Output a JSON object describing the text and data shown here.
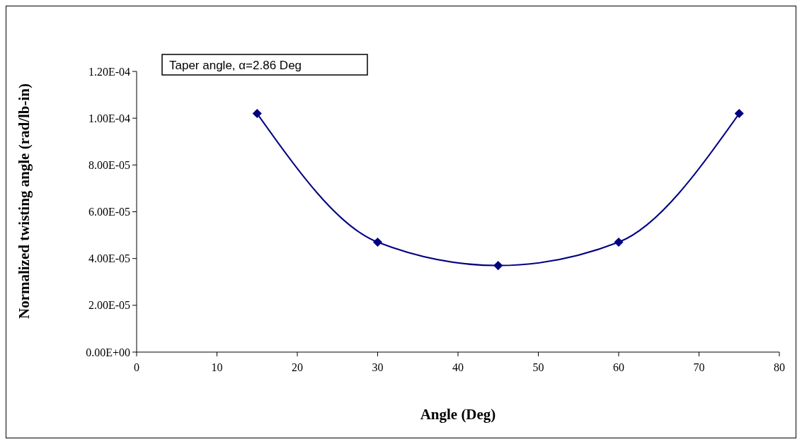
{
  "chart_data": {
    "type": "line",
    "xlabel": "Angle (Deg)",
    "ylabel": "Normalized twisting angle (rad/lb-in)",
    "annotations": [
      "Taper angle, α=2.86 Deg"
    ],
    "x": [
      15,
      30,
      45,
      60,
      75
    ],
    "series": [
      {
        "color": "#000080",
        "values": [
          0.000102,
          4.7e-05,
          3.7e-05,
          4.7e-05,
          0.000102
        ]
      }
    ],
    "xlim": [
      0,
      80
    ],
    "xticks": [
      0,
      10,
      20,
      30,
      40,
      50,
      60,
      70,
      80
    ],
    "ylim": [
      0,
      0.00012
    ],
    "yticks": [
      {
        "value": 0,
        "label": "0.00E+00"
      },
      {
        "value": 2e-05,
        "label": "2.00E-05"
      },
      {
        "value": 4e-05,
        "label": "4.00E-05"
      },
      {
        "value": 6e-05,
        "label": "6.00E-05"
      },
      {
        "value": 8e-05,
        "label": "8.00E-05"
      },
      {
        "value": 0.0001,
        "label": "1.00E-04"
      },
      {
        "value": 0.00012,
        "label": "1.20E-04"
      }
    ],
    "grid": false,
    "marker": "diamond",
    "line_style": "solid"
  }
}
